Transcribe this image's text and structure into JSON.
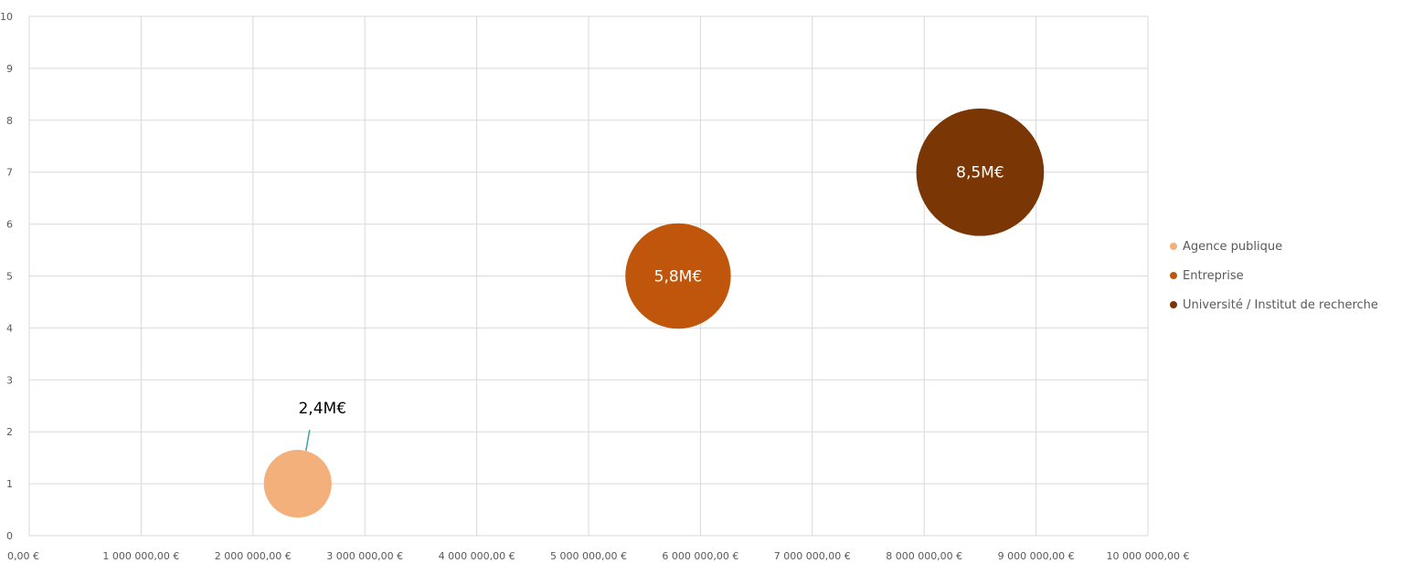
{
  "chart_data": {
    "type": "bubble",
    "x_tick_labels": [
      "0,00 €",
      "1 000 000,00 €",
      "2 000 000,00 €",
      "3 000 000,00 €",
      "4 000 000,00 €",
      "5 000 000,00 €",
      "6 000 000,00 €",
      "7 000 000,00 €",
      "8 000 000,00 €",
      "9 000 000,00 €",
      "10 000 000,00 €"
    ],
    "y_tick_labels": [
      "0",
      "1",
      "2",
      "3",
      "4",
      "5",
      "6",
      "7",
      "8",
      "9",
      "10"
    ],
    "xlim": [
      0,
      10000000
    ],
    "ylim": [
      0,
      10
    ],
    "grid": true,
    "legend_position": "right",
    "series": [
      {
        "name": "Agence publique",
        "x": 2400000,
        "y": 1,
        "size": 2400000,
        "label": "2,4M€",
        "color": "#F4B07A",
        "label_placement": "outside"
      },
      {
        "name": "Entreprise",
        "x": 5800000,
        "y": 5,
        "size": 5800000,
        "label": "5,8M€",
        "color": "#C0560C",
        "label_placement": "inside"
      },
      {
        "name": "Université / Institut de recherche",
        "x": 8500000,
        "y": 7,
        "size": 8500000,
        "label": "8,5M€",
        "color": "#7A3705",
        "label_placement": "inside"
      }
    ]
  }
}
